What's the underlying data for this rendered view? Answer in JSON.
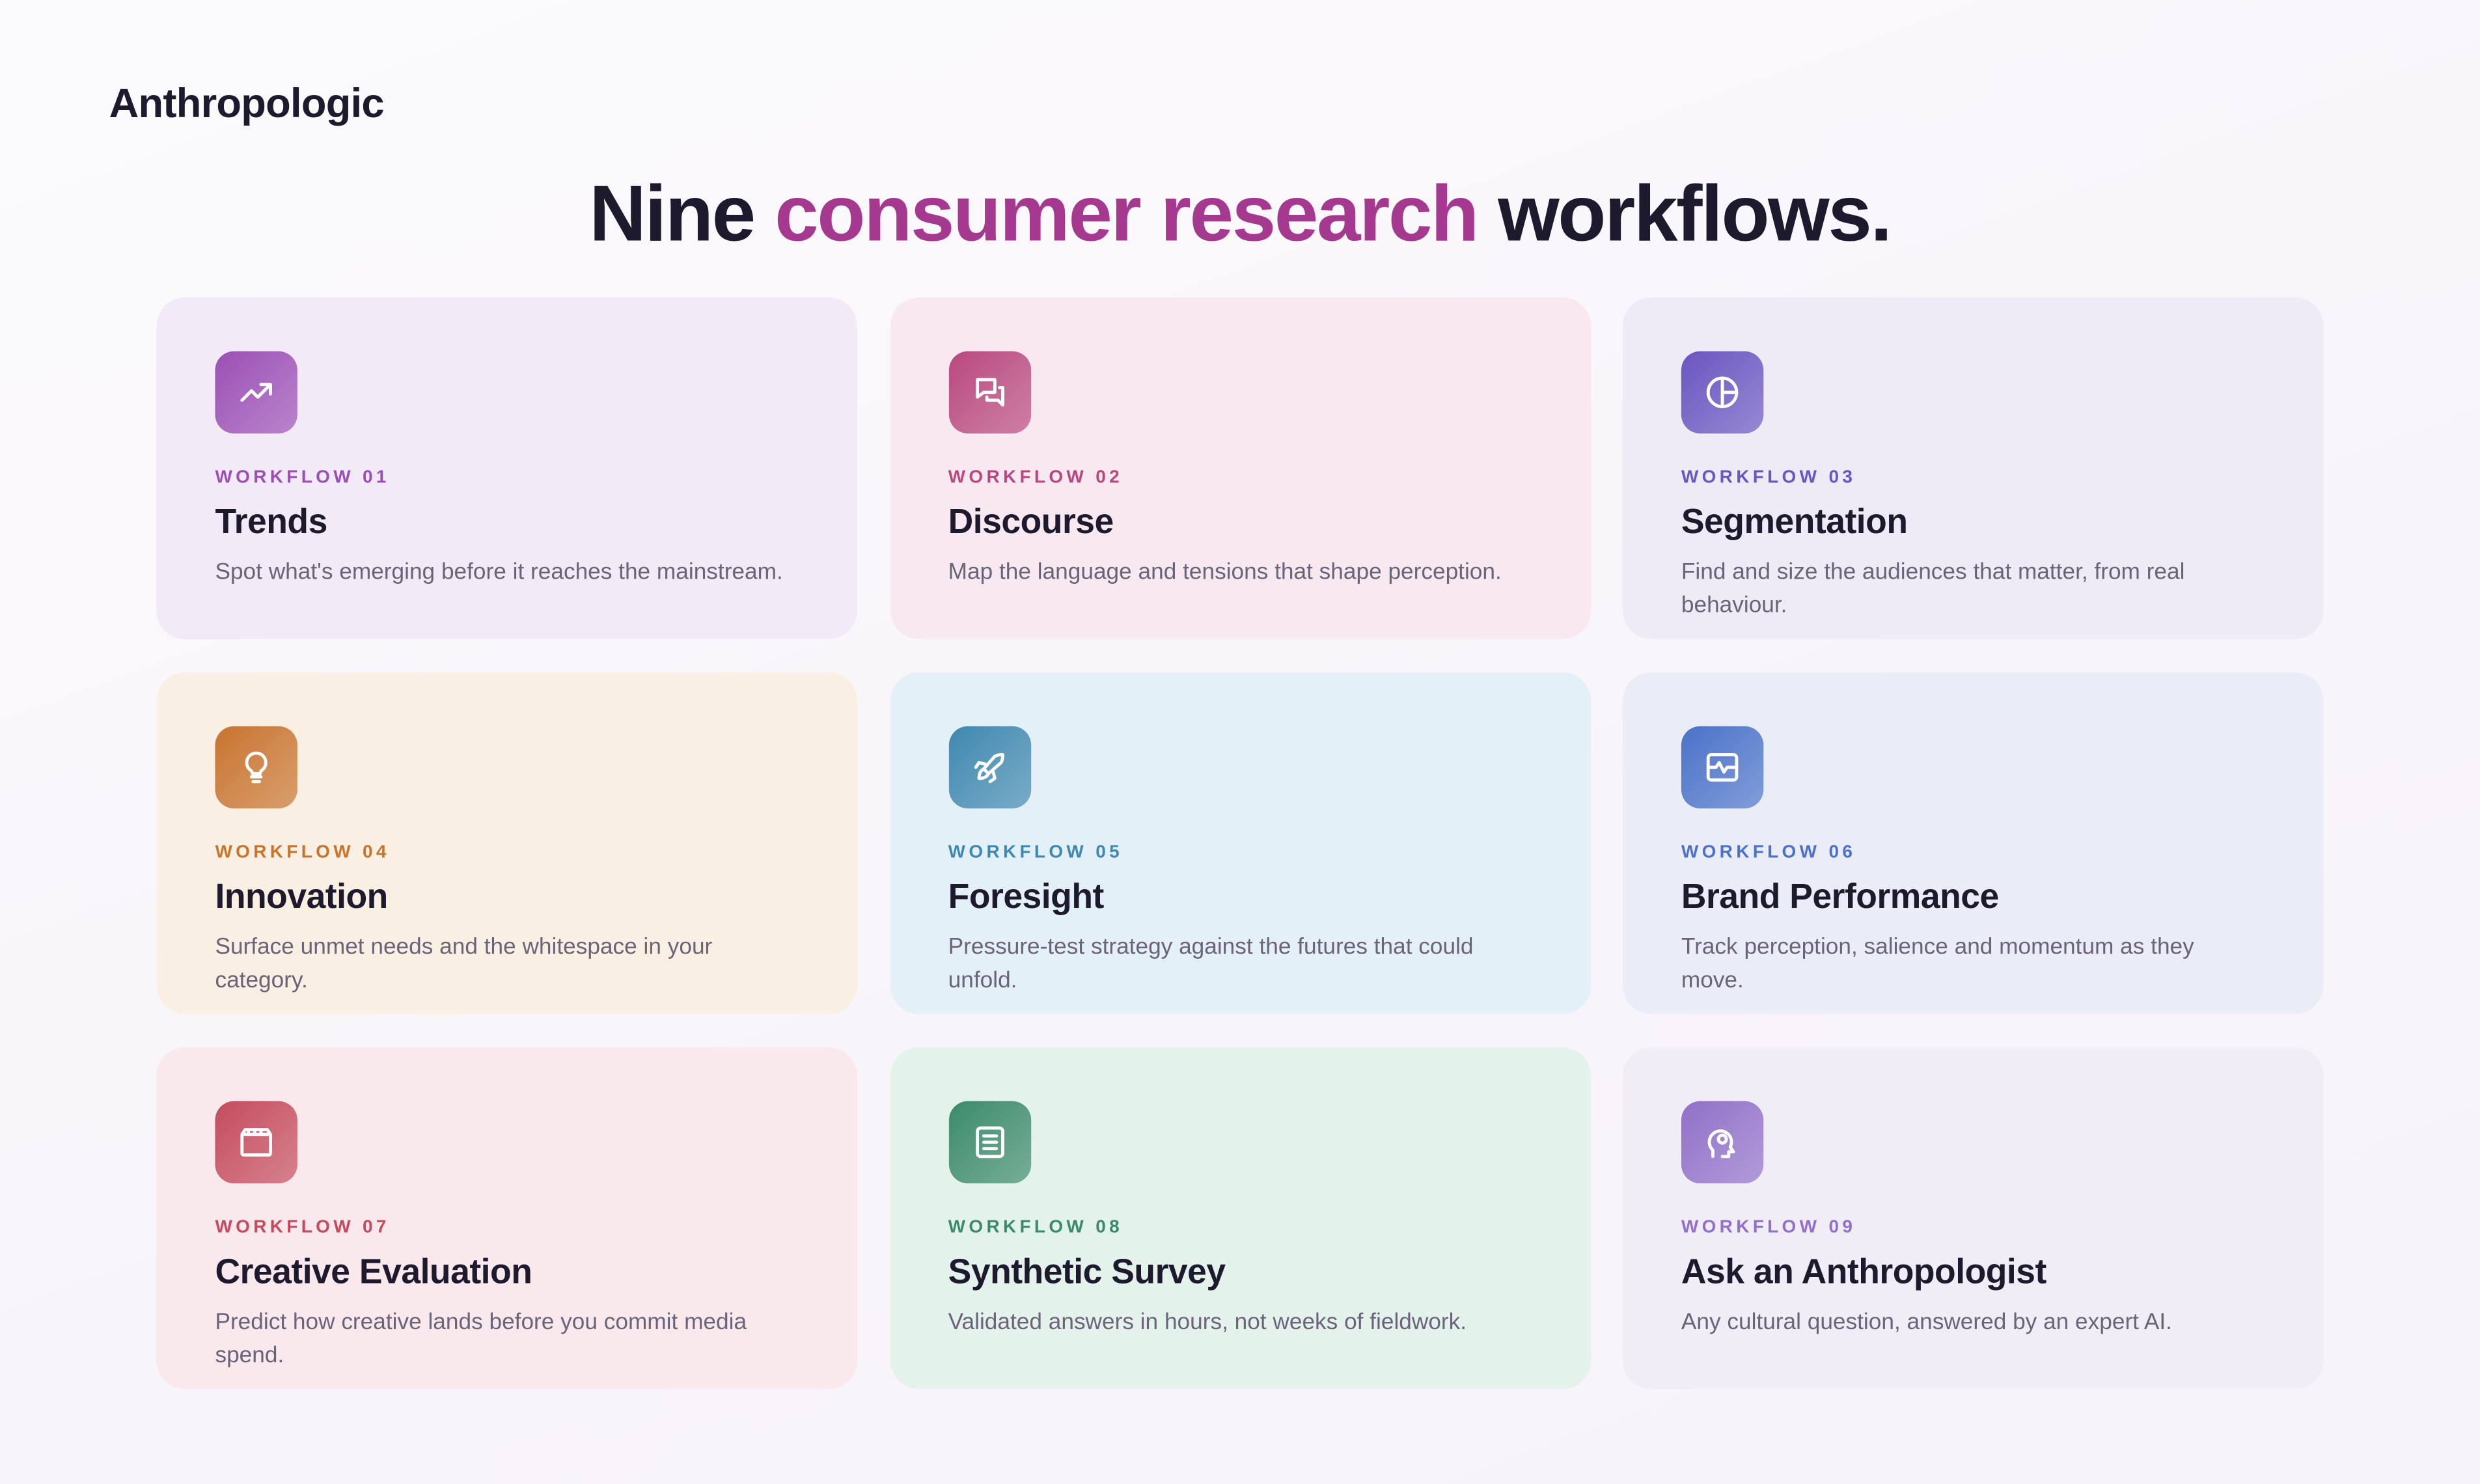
{
  "brand": "Anthropologic",
  "headline": {
    "before": "Nine",
    "accent": "consumer research",
    "after": "workflows."
  },
  "cards": [
    {
      "label": "WORKFLOW 01",
      "title": "Trends",
      "description": "Spot what's emerging before it reaches the mainstream.",
      "color": "#9b4fb5",
      "background": "#f2eaf6"
    },
    {
      "label": "WORKFLOW 02",
      "title": "Discourse",
      "description": "Map the language and tensions that shape perception.",
      "color": "#b8487f",
      "background": "#f8e9f1"
    },
    {
      "label": "WORKFLOW 03",
      "title": "Segmentation",
      "description": "Find and size the audiences that matter, from real behaviour.",
      "color": "#6b55c0",
      "background": "#eeebf7"
    },
    {
      "label": "WORKFLOW 04",
      "title": "Innovation",
      "description": "Surface unmet needs and the whitespace in your category.",
      "color": "#c8742d",
      "background": "#faefe3"
    },
    {
      "label": "WORKFLOW 05",
      "title": "Foresight",
      "description": "Pressure-test strategy against the futures that could unfold.",
      "color": "#3f88b0",
      "background": "#e4f0f7"
    },
    {
      "label": "WORKFLOW 06",
      "title": "Brand Performance",
      "description": "Track perception, salience and momentum as they move.",
      "color": "#4b72c8",
      "background": "#eaedf8"
    },
    {
      "label": "WORKFLOW 07",
      "title": "Creative Evaluation",
      "description": "Predict how creative lands before you commit media spend.",
      "color": "#c44b5e",
      "background": "#f9e8ec"
    },
    {
      "label": "WORKFLOW 08",
      "title": "Synthetic Survey",
      "description": "Validated answers in hours, not weeks of fieldwork.",
      "color": "#3b8b6b",
      "background": "#e4f2ec"
    },
    {
      "label": "WORKFLOW 09",
      "title": "Ask an Anthropologist",
      "description": "Any cultural question, answered by an expert AI.",
      "color": "#9070c8",
      "background": "#f1edf7"
    }
  ]
}
